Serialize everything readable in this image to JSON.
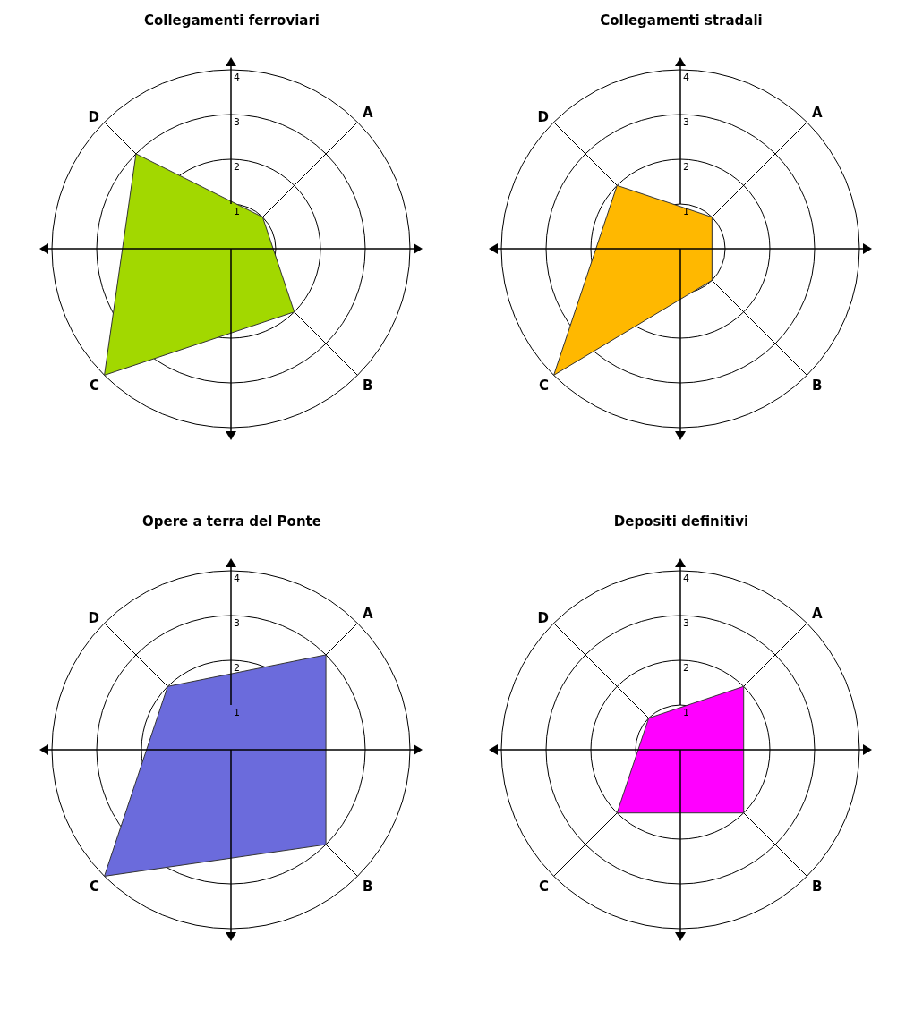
{
  "chart_data": [
    {
      "type": "radar",
      "title": "Collegamenti ferroviari",
      "categories": [
        "A",
        "B",
        "C",
        "D"
      ],
      "series": [
        {
          "color": "#a2d800",
          "values": [
            1,
            2,
            4,
            3
          ]
        }
      ],
      "ylim": [
        0,
        4
      ],
      "yticks": [
        1,
        2,
        3,
        4
      ],
      "grid": true
    },
    {
      "type": "radar",
      "title": "Collegamenti stradali",
      "categories": [
        "A",
        "B",
        "C",
        "D"
      ],
      "series": [
        {
          "color": "#ffb800",
          "values": [
            1,
            1,
            4,
            2
          ]
        }
      ],
      "ylim": [
        0,
        4
      ],
      "yticks": [
        1,
        2,
        3,
        4
      ],
      "grid": true
    },
    {
      "type": "radar",
      "title": "Opere a terra del Ponte",
      "categories": [
        "A",
        "B",
        "C",
        "D"
      ],
      "series": [
        {
          "color": "#6b6bdc",
          "values": [
            3,
            3,
            4,
            2
          ]
        }
      ],
      "ylim": [
        0,
        4
      ],
      "yticks": [
        1,
        2,
        3,
        4
      ],
      "grid": true
    },
    {
      "type": "radar",
      "title": "Depositi definitivi",
      "categories": [
        "A",
        "B",
        "C",
        "D"
      ],
      "series": [
        {
          "color": "#ff00ff",
          "values": [
            2,
            2,
            2,
            1
          ]
        }
      ],
      "ylim": [
        0,
        4
      ],
      "yticks": [
        1,
        2,
        3,
        4
      ],
      "grid": true
    }
  ]
}
